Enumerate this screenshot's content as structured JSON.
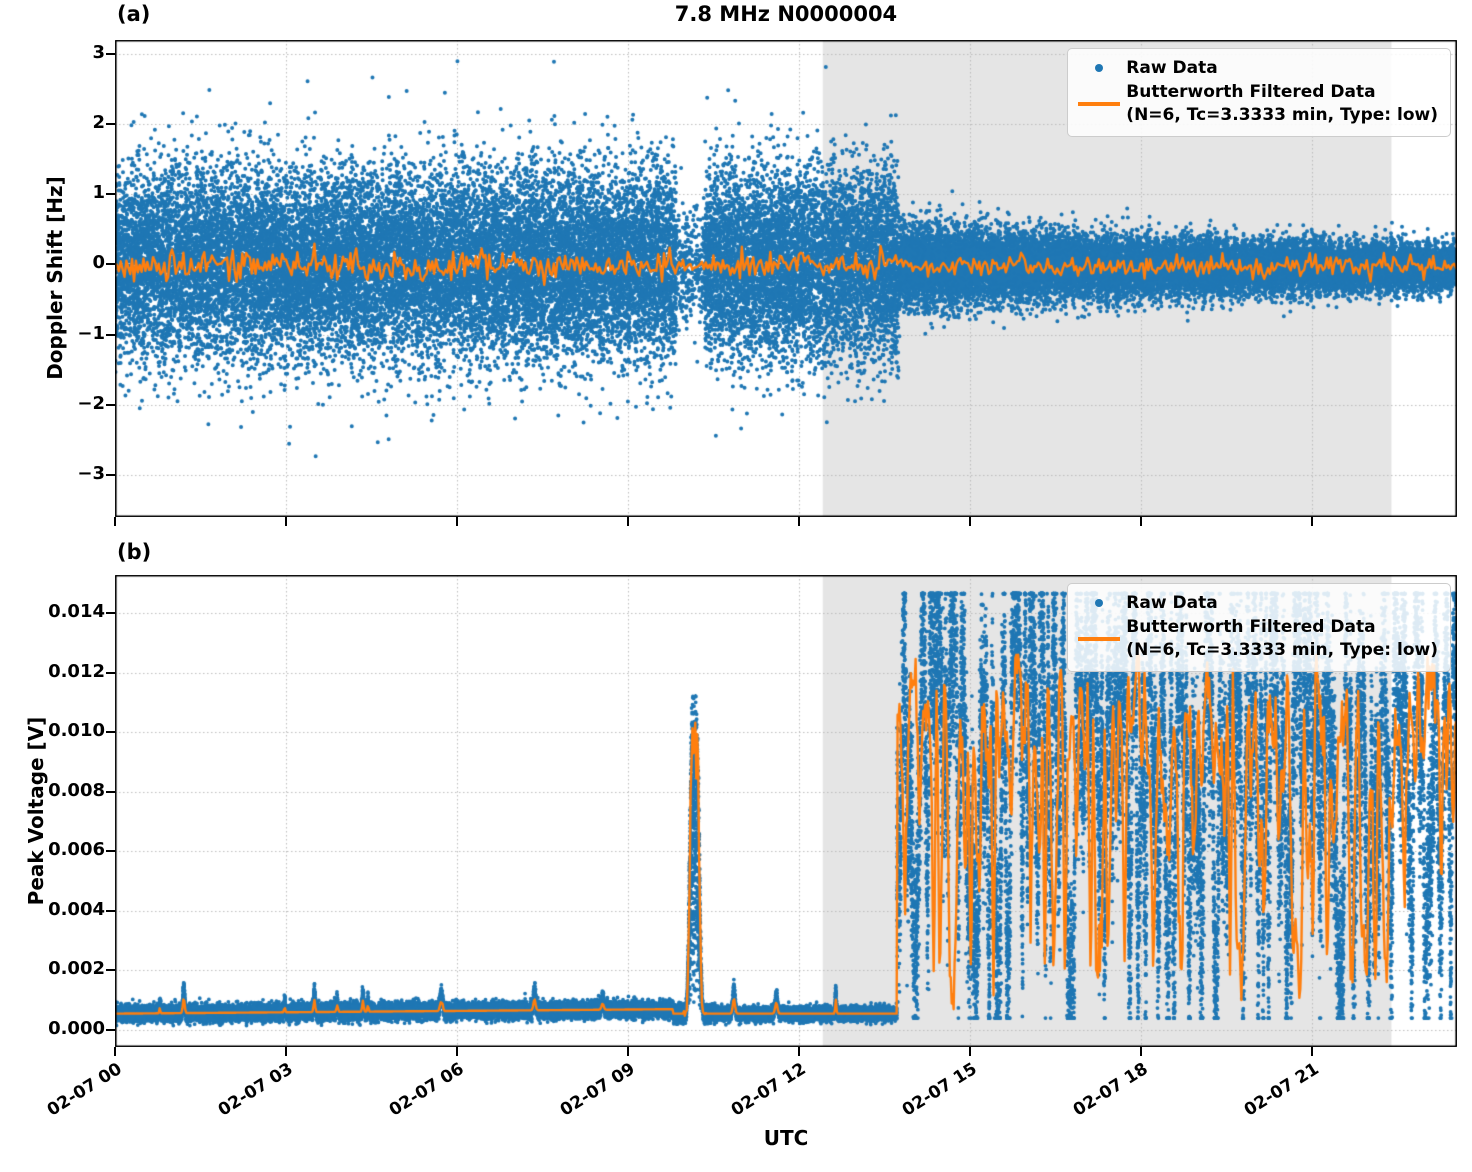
{
  "figure": {
    "title": "7.8 MHz N0000004",
    "panel_a_tag": "(a)",
    "panel_b_tag": "(b)",
    "xlabel": "UTC",
    "seed": 7
  },
  "colors": {
    "raw": "#1f77b4",
    "filtered": "#ff7f0e",
    "shade": "#e5e5e5",
    "grid": "#bbbbbb",
    "spine": "#000000",
    "legend_border": "#cccccc"
  },
  "legend": {
    "raw_label": "Raw Data",
    "filtered_label_line1": "Butterworth Filtered Data",
    "filtered_label_line2": "(N=6, Tc=3.3333 min, Type: low)"
  },
  "time_axis": {
    "xlim_hours": [
      0,
      23.55
    ],
    "tick_hours": [
      0,
      3,
      6,
      9,
      12,
      15,
      18,
      21
    ],
    "tick_labels": [
      "02-07 00",
      "02-07 03",
      "02-07 06",
      "02-07 09",
      "02-07 12",
      "02-07 15",
      "02-07 18",
      "02-07 21"
    ]
  },
  "shaded_region_hours": [
    12.42,
    22.4
  ],
  "chart_data": [
    {
      "type": "scatter",
      "panel": "a",
      "title": "7.8 MHz N0000004",
      "ylabel": "Doppler Shift [Hz]",
      "ylim": [
        -3.6,
        3.2
      ],
      "yticks": [
        {
          "value": 3,
          "label": "3"
        },
        {
          "value": 2,
          "label": "2"
        },
        {
          "value": 1,
          "label": "1"
        },
        {
          "value": 0,
          "label": "0"
        },
        {
          "value": -1,
          "label": "−1"
        },
        {
          "value": -2,
          "label": "−2"
        },
        {
          "value": -3,
          "label": "−3"
        }
      ],
      "grid": true,
      "legend_position": "upper right",
      "series": {
        "raw": {
          "name": "Raw Data",
          "marker_diameter_px": 4,
          "clip": [
            -3.45,
            3.0
          ],
          "segments": [
            {
              "t0": 0.0,
              "t1": 9.85,
              "mean": 0.0,
              "std0": 0.66,
              "std1": 0.66,
              "rate_per_min": 34
            },
            {
              "t0": 9.85,
              "t1": 10.35,
              "mean": 0.0,
              "std0": 0.42,
              "std1": 0.42,
              "rate_per_min": 9
            },
            {
              "t0": 10.35,
              "t1": 13.75,
              "mean": 0.0,
              "std0": 0.66,
              "std1": 0.66,
              "rate_per_min": 34
            },
            {
              "t0": 13.75,
              "t1": 17.0,
              "mean": -0.02,
              "std0": 0.3,
              "std1": 0.22,
              "rate_per_min": 36
            },
            {
              "t0": 17.0,
              "t1": 23.55,
              "mean": -0.04,
              "std0": 0.22,
              "std1": 0.15,
              "rate_per_min": 36
            }
          ]
        },
        "filtered": {
          "name": "Butterworth Filtered Data (N=6, Tc=3.3333 min, Type: low)",
          "step_min": 2,
          "segments": [
            {
              "t0": 0.0,
              "t1": 9.85,
              "mean": -0.03,
              "amp": 0.2
            },
            {
              "t0": 9.85,
              "t1": 10.35,
              "mean": -0.02,
              "amp": 0.05
            },
            {
              "t0": 10.35,
              "t1": 13.75,
              "mean": -0.01,
              "amp": 0.2
            },
            {
              "t0": 13.75,
              "t1": 23.55,
              "mean": -0.03,
              "amp": 0.13
            }
          ]
        }
      }
    },
    {
      "type": "scatter",
      "panel": "b",
      "ylabel": "Peak Voltage [V]",
      "ylim": [
        -0.00057,
        0.01528
      ],
      "yticks": [
        {
          "value": 0.014,
          "label": "0.014"
        },
        {
          "value": 0.012,
          "label": "0.012"
        },
        {
          "value": 0.01,
          "label": "0.010"
        },
        {
          "value": 0.008,
          "label": "0.008"
        },
        {
          "value": 0.006,
          "label": "0.006"
        },
        {
          "value": 0.004,
          "label": "0.004"
        },
        {
          "value": 0.002,
          "label": "0.002"
        },
        {
          "value": 0.0,
          "label": "0.000"
        }
      ],
      "grid": true,
      "legend_position": "upper right",
      "series": {
        "raw": {
          "name": "Raw Data",
          "marker_diameter_px": 4,
          "segments": [
            {
              "mode": "baseline",
              "t0": 0.0,
              "t1": 9.8,
              "level0": 0.00055,
              "level1": 0.0007,
              "jitter": 0.00013,
              "rate_per_min": 30
            },
            {
              "mode": "peak",
              "t0": 9.8,
              "t1": 10.5,
              "center": 10.17,
              "sigma": 0.1,
              "peak": 0.01,
              "base": 0.0005,
              "rate_per_min": 60
            },
            {
              "mode": "baseline",
              "t0": 10.5,
              "t1": 13.72,
              "level0": 0.00055,
              "level1": 0.00055,
              "jitter": 0.00011,
              "rate_per_min": 30
            },
            {
              "mode": "burst",
              "t0": 13.72,
              "t1": 23.55,
              "vmin": 0.0004,
              "vmax": 0.01465,
              "spread": 0.0019,
              "rate_per_min": 36
            }
          ]
        },
        "filtered": {
          "name": "Butterworth Filtered Data (N=6, Tc=3.3333 min, Type: low)",
          "baseline": 0.0006,
          "peak_value": 0.0087,
          "burst_range": [
            0.0012,
            0.0125
          ],
          "burst_start_hour": 13.72
        }
      }
    }
  ]
}
